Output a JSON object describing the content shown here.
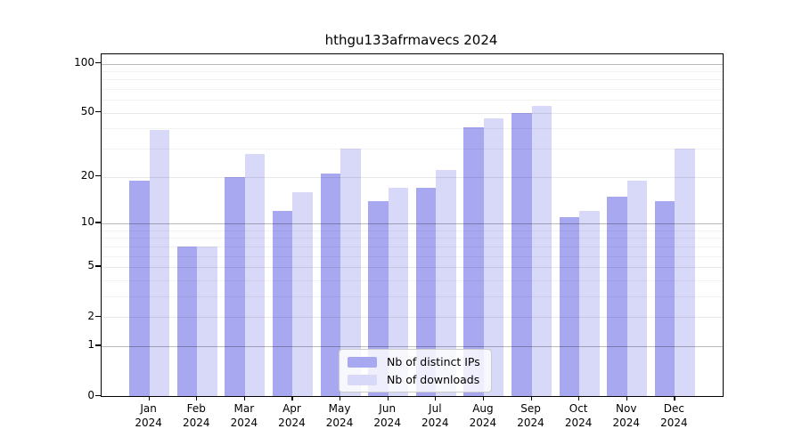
{
  "title": "hthgu133afrmavecs 2024",
  "chart_data": {
    "type": "bar",
    "title": "hthgu133afrmavecs 2024",
    "xlabel": "",
    "ylabel": "",
    "scale": "log1p",
    "categories": [
      "Jan",
      "Feb",
      "Mar",
      "Apr",
      "May",
      "Jun",
      "Jul",
      "Aug",
      "Sep",
      "Oct",
      "Nov",
      "Dec"
    ],
    "year": "2024",
    "series": [
      {
        "name": "Nb of distinct IPs",
        "color": "#a8a8f0",
        "values": [
          19,
          7,
          20,
          12,
          21,
          14,
          17,
          41,
          50,
          11,
          15,
          14
        ]
      },
      {
        "name": "Nb of downloads",
        "color": "#d8d8f8",
        "values": [
          39,
          7,
          28,
          16,
          30,
          17,
          22,
          46,
          55,
          12,
          19,
          30
        ]
      }
    ],
    "yticks": [
      0,
      1,
      2,
      5,
      10,
      20,
      50,
      100
    ],
    "ytick_labels": [
      "0",
      "1",
      "2",
      "5",
      "10",
      "20",
      "50",
      "100"
    ],
    "minor_yticks": [
      3,
      4,
      6,
      7,
      8,
      9,
      30,
      40,
      60,
      70,
      80,
      90
    ],
    "ylim": [
      0,
      114
    ],
    "grid": true,
    "legend_position": "lower center",
    "legend_labels": [
      "Nb of distinct IPs",
      "Nb of downloads"
    ],
    "colors": {
      "bar_dark": "#a8a8f0",
      "bar_light": "#d8d8f8",
      "grid_major_pow10": "rgba(0,0,0,0.27)",
      "grid_major_mid": "rgba(0,0,0,0.09)",
      "grid_minor": "rgba(0,0,0,0.05)",
      "axis": "#000000",
      "legend_border": "#cccccc"
    }
  }
}
